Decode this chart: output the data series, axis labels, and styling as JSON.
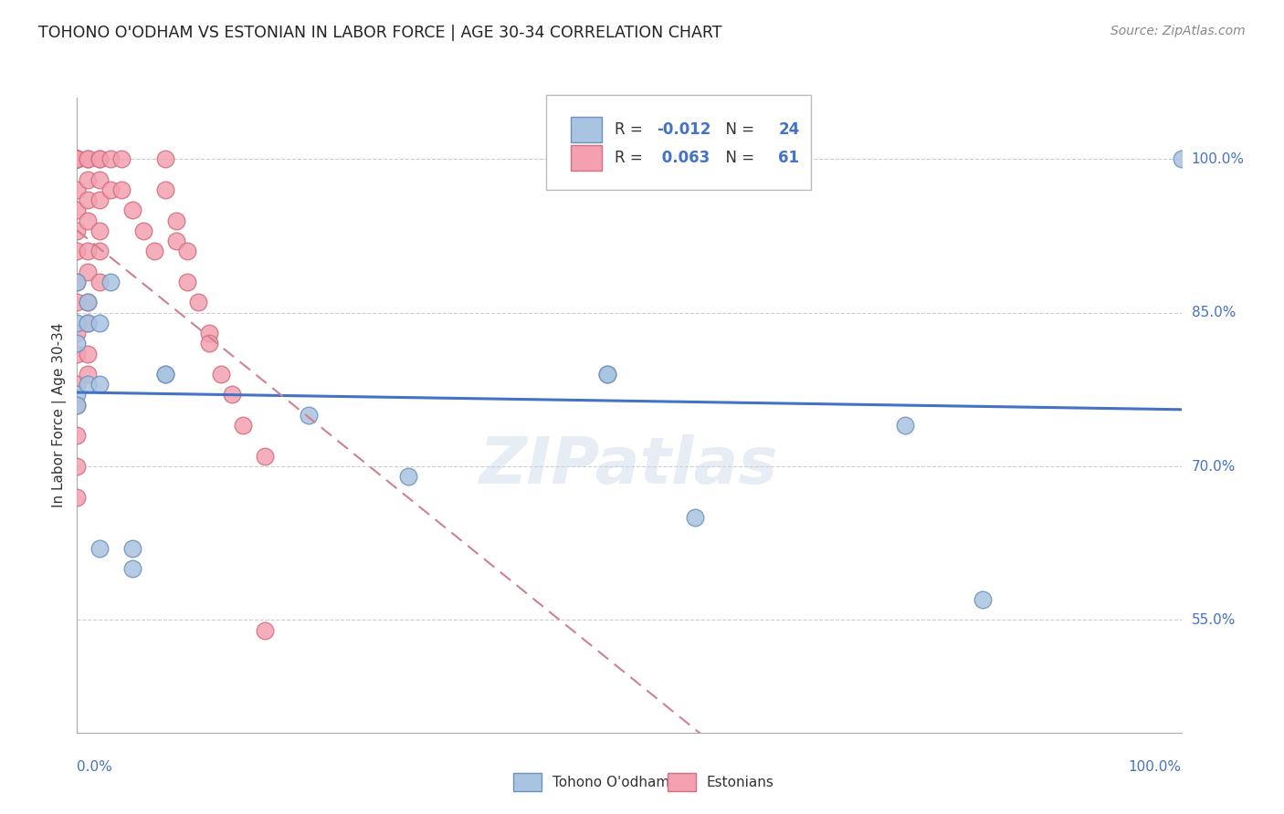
{
  "title": "TOHONO O'ODHAM VS ESTONIAN IN LABOR FORCE | AGE 30-34 CORRELATION CHART",
  "source": "Source: ZipAtlas.com",
  "ylabel": "In Labor Force | Age 30-34",
  "ytick_labels": [
    "100.0%",
    "85.0%",
    "70.0%",
    "55.0%"
  ],
  "ytick_values": [
    1.0,
    0.85,
    0.7,
    0.55
  ],
  "xlim": [
    0.0,
    1.0
  ],
  "ylim": [
    0.44,
    1.06
  ],
  "legend_r_blue": "-0.012",
  "legend_n_blue": "24",
  "legend_r_pink": "0.063",
  "legend_n_pink": "61",
  "blue_color": "#a8c4e0",
  "pink_color": "#f4a0b0",
  "blue_edge_color": "#7090c0",
  "pink_edge_color": "#d07080",
  "trendline_blue_color": "#4472c4",
  "trendline_pink_color": "#d08090",
  "watermark": "ZIPatlas",
  "blue_scatter_x": [
    0.0,
    0.0,
    0.0,
    0.0,
    0.0,
    0.01,
    0.01,
    0.01,
    0.02,
    0.02,
    0.02,
    0.03,
    0.05,
    0.05,
    0.08,
    0.08,
    0.21,
    0.3,
    0.48,
    0.48,
    0.56,
    0.75,
    0.82,
    1.0
  ],
  "blue_scatter_y": [
    0.88,
    0.84,
    0.82,
    0.77,
    0.76,
    0.86,
    0.84,
    0.78,
    0.84,
    0.78,
    0.62,
    0.88,
    0.62,
    0.6,
    0.79,
    0.79,
    0.75,
    0.69,
    0.79,
    0.79,
    0.65,
    0.74,
    0.57,
    1.0
  ],
  "pink_scatter_x": [
    0.0,
    0.0,
    0.0,
    0.0,
    0.0,
    0.0,
    0.0,
    0.0,
    0.0,
    0.0,
    0.0,
    0.0,
    0.0,
    0.0,
    0.0,
    0.0,
    0.0,
    0.0,
    0.0,
    0.0,
    0.0,
    0.0,
    0.01,
    0.01,
    0.01,
    0.01,
    0.01,
    0.01,
    0.01,
    0.01,
    0.01,
    0.01,
    0.01,
    0.02,
    0.02,
    0.02,
    0.02,
    0.02,
    0.02,
    0.02,
    0.03,
    0.03,
    0.04,
    0.04,
    0.05,
    0.06,
    0.07,
    0.08,
    0.08,
    0.09,
    0.09,
    0.1,
    0.1,
    0.11,
    0.12,
    0.12,
    0.13,
    0.14,
    0.15,
    0.17,
    0.17
  ],
  "pink_scatter_y": [
    1.0,
    1.0,
    1.0,
    1.0,
    1.0,
    1.0,
    1.0,
    1.0,
    1.0,
    0.97,
    0.95,
    0.93,
    0.91,
    0.88,
    0.86,
    0.83,
    0.81,
    0.78,
    0.76,
    0.73,
    0.7,
    0.67,
    1.0,
    1.0,
    0.98,
    0.96,
    0.94,
    0.91,
    0.89,
    0.86,
    0.84,
    0.81,
    0.79,
    1.0,
    1.0,
    0.98,
    0.96,
    0.93,
    0.91,
    0.88,
    1.0,
    0.97,
    1.0,
    0.97,
    0.95,
    0.93,
    0.91,
    1.0,
    0.97,
    0.94,
    0.92,
    0.91,
    0.88,
    0.86,
    0.83,
    0.82,
    0.79,
    0.77,
    0.74,
    0.71,
    0.54
  ]
}
